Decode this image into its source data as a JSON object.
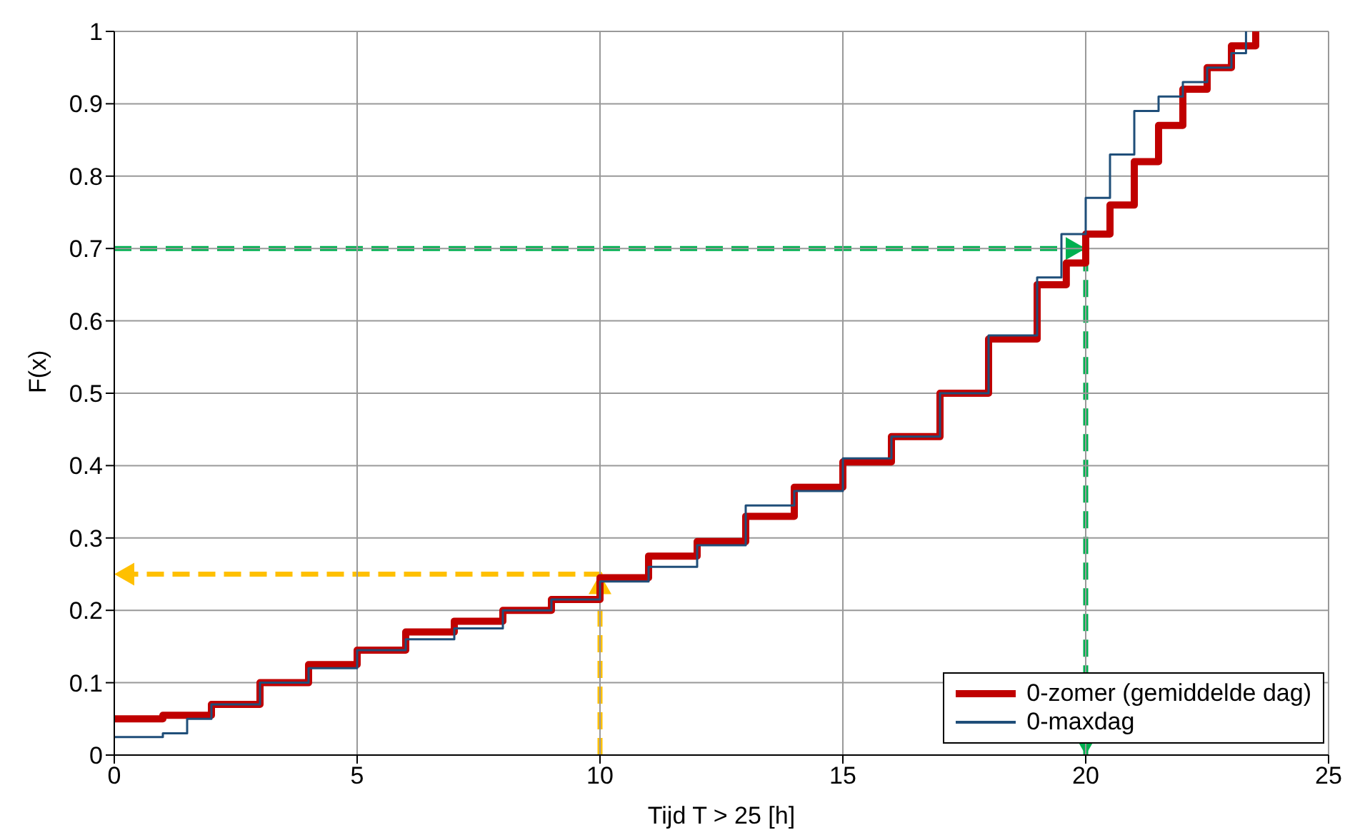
{
  "chart_data": {
    "type": "step",
    "xlabel": "Tijd T > 25 [h]",
    "ylabel": "F(x)",
    "xlim": [
      0,
      25
    ],
    "ylim": [
      0,
      1
    ],
    "xticks": [
      0,
      5,
      10,
      15,
      20,
      25
    ],
    "yticks": [
      0,
      0.1,
      0.2,
      0.3,
      0.4,
      0.5,
      0.6,
      0.7,
      0.8,
      0.9,
      1
    ],
    "grid": true,
    "legend": "bottom right",
    "series": [
      {
        "name": "0-zomer (gemiddelde dag)",
        "color": "#c00000",
        "x": [
          0,
          1,
          2,
          3,
          4,
          5,
          6,
          7,
          8,
          9,
          10,
          11,
          12,
          13,
          14,
          15,
          16,
          17,
          18,
          19,
          19.6,
          20,
          20.5,
          21,
          21.5,
          22,
          22.5,
          23,
          23.5
        ],
        "values": [
          0.05,
          0.055,
          0.07,
          0.1,
          0.125,
          0.145,
          0.17,
          0.185,
          0.2,
          0.215,
          0.245,
          0.275,
          0.295,
          0.33,
          0.37,
          0.405,
          0.44,
          0.5,
          0.575,
          0.65,
          0.68,
          0.72,
          0.76,
          0.82,
          0.87,
          0.92,
          0.95,
          0.98,
          1.0
        ]
      },
      {
        "name": "0-maxdag",
        "color": "#1f4e79",
        "x": [
          0,
          1,
          1.5,
          2,
          3,
          4,
          5,
          6,
          7,
          8,
          9,
          10,
          11,
          12,
          13,
          14,
          15,
          16,
          17,
          18,
          19,
          19.5,
          20,
          20.5,
          21,
          21.5,
          22,
          22.5,
          23,
          23.3
        ],
        "values": [
          0.025,
          0.03,
          0.05,
          0.07,
          0.1,
          0.12,
          0.145,
          0.16,
          0.175,
          0.2,
          0.215,
          0.24,
          0.26,
          0.29,
          0.345,
          0.365,
          0.41,
          0.44,
          0.5,
          0.58,
          0.66,
          0.72,
          0.77,
          0.83,
          0.89,
          0.91,
          0.93,
          0.95,
          0.97,
          1.0
        ]
      },
      {
        "type": "line",
        "line_style": "dashed",
        "color": "#ffc000",
        "x": [
          10,
          10,
          0
        ],
        "values": [
          0,
          0.25,
          0.25
        ]
      },
      {
        "type": "line",
        "line_style": "dashed",
        "color": "#00b050",
        "x": [
          0,
          20,
          20
        ],
        "values": [
          0.7,
          0.7,
          0
        ]
      }
    ]
  }
}
